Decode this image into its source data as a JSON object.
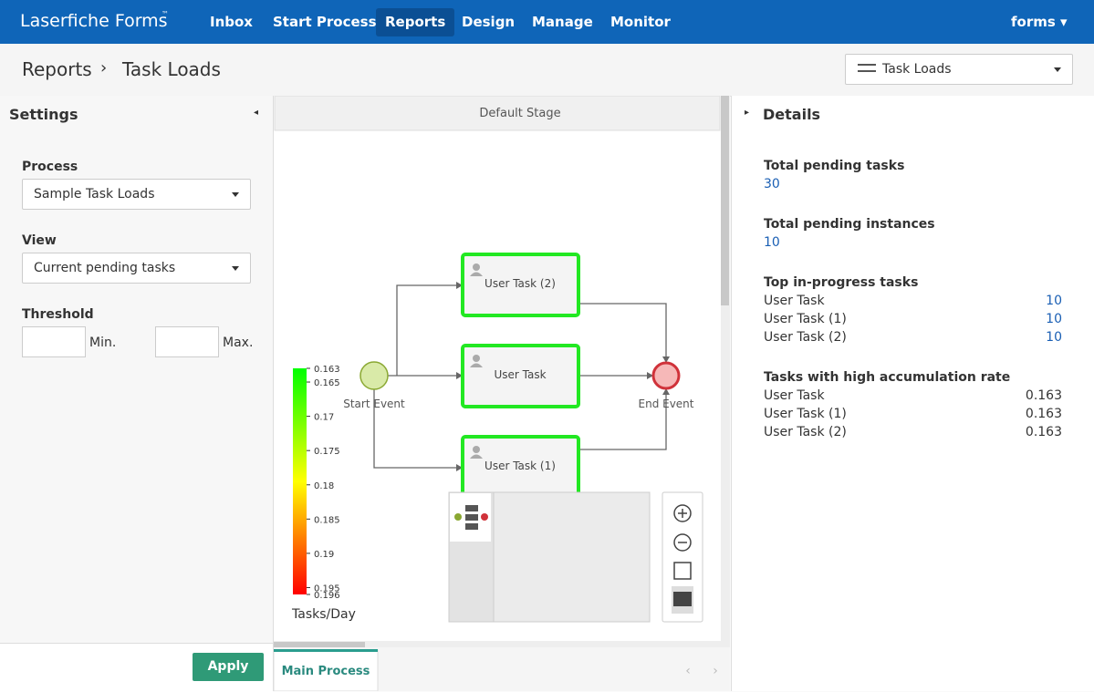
{
  "nav": {
    "brand": "Laserfiche Forms",
    "trademark": "™",
    "items": [
      "Inbox",
      "Start Process",
      "Reports",
      "Design",
      "Manage",
      "Monitor"
    ],
    "active": "Reports",
    "user": "forms"
  },
  "breadcrumb": {
    "items": [
      "Reports",
      "Task Loads"
    ],
    "report_select": "Task Loads"
  },
  "settings": {
    "title": "Settings",
    "process_label": "Process",
    "process_value": "Sample Task Loads",
    "view_label": "View",
    "view_value": "Current pending tasks",
    "threshold_label": "Threshold",
    "min_label": "Min.",
    "max_label": "Max.",
    "apply": "Apply"
  },
  "diagram": {
    "stage": "Default Stage",
    "nodes": [
      {
        "label": "Start Event"
      },
      {
        "label": "User Task (2)"
      },
      {
        "label": "User Task"
      },
      {
        "label": "User Task (1)"
      },
      {
        "label": "End Event"
      }
    ],
    "legend": {
      "ticks": [
        0.163,
        0.165,
        0.17,
        0.175,
        0.18,
        0.185,
        0.19,
        0.195,
        0.196
      ],
      "title": "Tasks/Day"
    },
    "tab": "Main Process"
  },
  "details": {
    "title": "Details",
    "total_pending_tasks": {
      "label": "Total pending tasks",
      "value": 30
    },
    "total_pending_instances": {
      "label": "Total pending instances",
      "value": 10
    },
    "top_tasks": {
      "label": "Top in-progress tasks",
      "rows": [
        {
          "name": "User Task",
          "value": 10
        },
        {
          "name": "User Task (1)",
          "value": 10
        },
        {
          "name": "User Task (2)",
          "value": 10
        }
      ]
    },
    "high_rate": {
      "label": "Tasks with high accumulation rate",
      "rows": [
        {
          "name": "User Task",
          "value": 0.163
        },
        {
          "name": "User Task (1)",
          "value": 0.163
        },
        {
          "name": "User Task (2)",
          "value": 0.163
        }
      ]
    }
  }
}
